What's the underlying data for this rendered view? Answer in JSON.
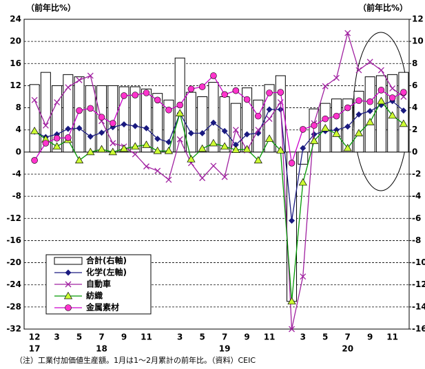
{
  "chart_data": {
    "type": "bar-line",
    "y_label": "（前年比%）",
    "y2_label": "（前年比%）",
    "note": "（注）工業付加価値生産額。1月は1～2月累計の前年比。（資料）CEIC",
    "categories": [
      "12",
      null,
      "3",
      null,
      "5",
      null,
      "7",
      null,
      "9",
      null,
      "11",
      null,
      null,
      "3",
      null,
      "5",
      null,
      "7",
      null,
      "9",
      null,
      "11",
      null,
      null,
      "3",
      null,
      "5",
      null,
      "7",
      null,
      "9",
      null,
      "11",
      null
    ],
    "years": [
      "17",
      null,
      null,
      null,
      null,
      null,
      "18",
      null,
      null,
      null,
      null,
      null,
      null,
      null,
      null,
      null,
      null,
      "19",
      null,
      null,
      null,
      null,
      null,
      null,
      null,
      null,
      null,
      null,
      "20",
      null,
      null,
      null,
      null,
      null
    ],
    "ylim": [
      -32,
      24
    ],
    "yticks": [
      -32,
      -28,
      -24,
      -20,
      -16,
      -12,
      -8,
      -4,
      0,
      4,
      8,
      12,
      16,
      20,
      24
    ],
    "y2lim": [
      -16,
      12
    ],
    "y2ticks": [
      -16,
      -14,
      -12,
      -10,
      -8,
      -6,
      -4,
      -2,
      0,
      2,
      4,
      6,
      8,
      10,
      12
    ],
    "grid": true,
    "legend": "lower left",
    "series": [
      {
        "name": "合計(右軸)",
        "kind": "bar",
        "axis": "y2",
        "color": "#ffffff",
        "values": [
          6.1,
          7.2,
          6.0,
          7.0,
          6.8,
          6.0,
          6.0,
          6.0,
          5.9,
          5.9,
          5.7,
          5.3,
          4.7,
          8.5,
          5.4,
          5.0,
          6.3,
          5.0,
          4.4,
          5.8,
          4.7,
          6.1,
          6.9,
          -13.5,
          -1.1,
          3.9,
          4.4,
          4.8,
          4.8,
          5.5,
          6.8,
          6.9,
          7.0,
          7.2
        ]
      },
      {
        "name": "化学(左軸)",
        "kind": "line",
        "marker": "diamond",
        "color": "#1a1a80",
        "values": [
          3.7,
          2.7,
          3.2,
          4.2,
          4.3,
          2.8,
          3.5,
          4.5,
          5.0,
          4.7,
          4.3,
          2.4,
          1.8,
          7.0,
          3.4,
          3.4,
          5.3,
          3.8,
          1.3,
          3.2,
          3.4,
          7.7,
          7.7,
          -12.4,
          0.7,
          3.2,
          3.8,
          4.0,
          4.6,
          6.8,
          7.4,
          8.5,
          9.2,
          7.5
        ]
      },
      {
        "name": "自動車",
        "kind": "line",
        "marker": "x",
        "color": "#a020a0",
        "values": [
          9.4,
          4.8,
          9.0,
          11.7,
          13.0,
          13.8,
          5.6,
          1.6,
          1.0,
          -0.4,
          -2.6,
          -3.4,
          -5.0,
          2.3,
          -2.0,
          -4.7,
          -2.5,
          -4.5,
          4.0,
          0.3,
          4.0,
          6.0,
          9.0,
          -32.0,
          -22.5,
          5.2,
          11.9,
          13.4,
          21.5,
          14.8,
          16.3,
          14.8,
          11.5,
          10.0
        ]
      },
      {
        "name": "紡織",
        "kind": "line",
        "marker": "triangle",
        "color": "#009900",
        "marker_color": "#ccff33",
        "values": [
          3.8,
          2.3,
          1.0,
          2.2,
          -1.5,
          0.0,
          0.5,
          0.0,
          0.6,
          1.0,
          1.3,
          0.2,
          0.2,
          7.0,
          -1.3,
          0.6,
          1.6,
          1.0,
          0.4,
          0.5,
          -1.5,
          2.4,
          0.3,
          -27.0,
          -5.5,
          2.0,
          4.3,
          3.3,
          0.7,
          3.4,
          5.4,
          9.2,
          6.6,
          5.1
        ]
      },
      {
        "name": "金属素材",
        "kind": "line",
        "marker": "circle",
        "color": "#cc00cc",
        "marker_color": "#ff33cc",
        "values": [
          -1.5,
          1.6,
          2.5,
          2.6,
          7.5,
          7.9,
          6.3,
          5.2,
          10.2,
          10.3,
          10.7,
          9.4,
          7.6,
          8.5,
          11.4,
          11.8,
          13.8,
          10.4,
          11.1,
          9.5,
          6.5,
          10.7,
          10.8,
          -2.0,
          4.1,
          4.8,
          6.0,
          6.5,
          8.0,
          9.3,
          9.1,
          11.2,
          9.8,
          10.8
        ]
      }
    ]
  }
}
